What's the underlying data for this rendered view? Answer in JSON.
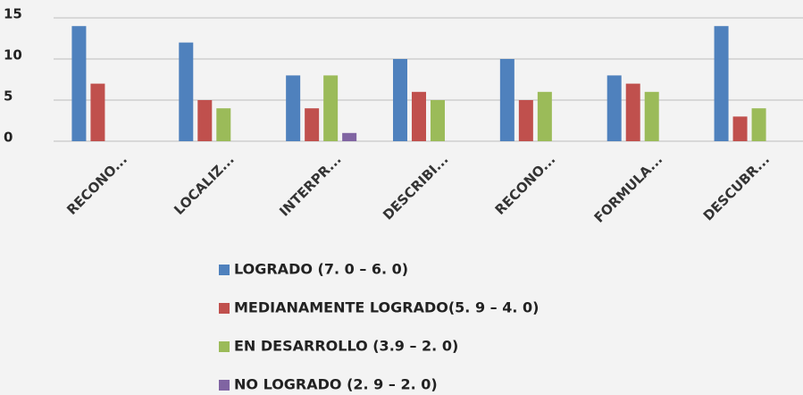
{
  "chart_data": {
    "type": "bar",
    "categories": [
      "RECONO...",
      "LOCALIZ...",
      "INTERPR...",
      "DESCRIBI...",
      "RECONO...",
      "FORMULA...",
      "DESCUBR..."
    ],
    "series": [
      {
        "name": "LOGRADO (7. 0 – 6. 0)",
        "color": "#4f81bd",
        "values": [
          14,
          12,
          8,
          10,
          10,
          8,
          14
        ]
      },
      {
        "name": "MEDIANAMENTE LOGRADO(5. 9 – 4. 0)",
        "color": "#c0504d",
        "values": [
          7,
          5,
          4,
          6,
          5,
          7,
          3
        ]
      },
      {
        "name": "EN DESARROLLO (3.9 – 2. 0)",
        "color": "#9bbb59",
        "values": [
          0,
          4,
          8,
          5,
          6,
          6,
          4
        ]
      },
      {
        "name": "NO LOGRADO (2. 9 – 2. 0)",
        "color": "#8064a2",
        "values": [
          0,
          0,
          1,
          0,
          0,
          0,
          0
        ]
      }
    ],
    "ylim": [
      0,
      15
    ],
    "yticks": [
      0,
      5,
      10,
      15
    ],
    "grid": true,
    "legend": "bottom"
  }
}
